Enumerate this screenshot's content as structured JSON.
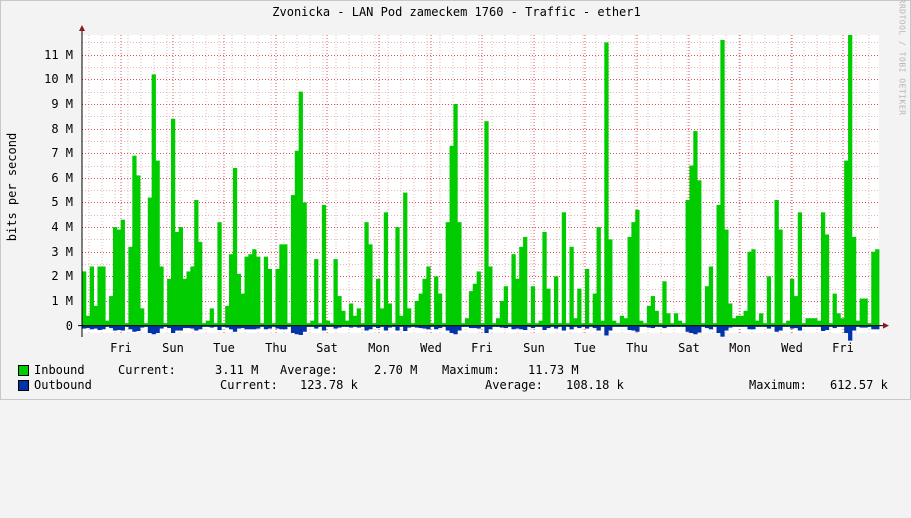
{
  "chart_data": {
    "type": "area",
    "title": "Zvonicka - LAN Pod zameckem 1760 - Traffic - ether1",
    "ylabel": "bits per second",
    "watermark": "RRDTOOL / TOBI OETIKER",
    "ylim": [
      -0.3,
      11.8
    ],
    "y_unit": "M",
    "y_ticks": [
      0,
      1,
      2,
      3,
      4,
      5,
      6,
      7,
      8,
      9,
      10,
      11
    ],
    "y_tick_labels": [
      "0",
      "1 M",
      "2 M",
      "3 M",
      "4 M",
      "5 M",
      "6 M",
      "7 M",
      "8 M",
      "9 M",
      "10 M",
      "11 M"
    ],
    "x_tick_labels": [
      "Fri",
      "Sun",
      "Tue",
      "Thu",
      "Sat",
      "Mon",
      "Wed",
      "Fri",
      "Sun",
      "Tue",
      "Thu",
      "Sat",
      "Mon",
      "Wed",
      "Fri"
    ],
    "grid": true,
    "colors": {
      "inbound": "#00cc00",
      "outbound": "#0033aa",
      "grid_minor": "#e8b8b8",
      "grid_major": "#e05050",
      "plot_bg": "#ffffff",
      "axis": "#000000",
      "arrow": "#8b1a1a"
    },
    "series": [
      {
        "name": "Inbound",
        "values": [
          2.2,
          0.4,
          2.4,
          0.8,
          2.4,
          2.4,
          0.2,
          1.2,
          4.0,
          3.9,
          4.3,
          0.1,
          3.2,
          6.9,
          6.1,
          0.7,
          0.1,
          5.2,
          10.2,
          6.7,
          2.4,
          0.1,
          1.9,
          8.4,
          3.8,
          4.0,
          1.9,
          2.2,
          2.4,
          5.1,
          3.4,
          0.1,
          0.2,
          0.7,
          0.1,
          4.2,
          0.1,
          0.8,
          2.9,
          6.4,
          2.1,
          1.3,
          2.8,
          2.9,
          3.1,
          2.8,
          0.1,
          2.8,
          2.3,
          0.1,
          2.3,
          3.3,
          3.3,
          0.1,
          5.3,
          7.1,
          9.5,
          5.0,
          0.1,
          0.2,
          2.7,
          0.1,
          4.9,
          0.2,
          0.1,
          2.7,
          1.2,
          0.6,
          0.2,
          0.9,
          0.4,
          0.7,
          0.1,
          4.2,
          3.3,
          0.1,
          1.9,
          0.7,
          4.6,
          0.9,
          0.1,
          4.0,
          0.4,
          5.4,
          0.7,
          0.1,
          1.0,
          1.3,
          1.9,
          2.4,
          0.1,
          2.0,
          1.3,
          0.1,
          4.2,
          7.3,
          9.0,
          4.2,
          0.1,
          0.3,
          1.4,
          1.7,
          2.2,
          0.1,
          8.3,
          2.4,
          0.1,
          0.3,
          1.0,
          1.6,
          0.1,
          2.9,
          1.9,
          3.2,
          3.6,
          0.1,
          1.6,
          0.1,
          0.2,
          3.8,
          1.5,
          0.1,
          2.0,
          0.1,
          4.6,
          0.1,
          3.2,
          0.3,
          1.5,
          0.1,
          2.3,
          0.1,
          1.3,
          4.0,
          0.2,
          11.5,
          3.5,
          0.2,
          0.1,
          0.4,
          0.3,
          3.6,
          4.2,
          4.7,
          0.2,
          0.1,
          0.8,
          1.2,
          0.6,
          0.1,
          1.8,
          0.5,
          0.1,
          0.5,
          0.2,
          0.1,
          5.1,
          6.5,
          7.9,
          5.9,
          0.1,
          1.6,
          2.4,
          0.1,
          4.9,
          11.6,
          3.9,
          0.9,
          0.3,
          0.4,
          0.4,
          0.6,
          3.0,
          3.1,
          0.2,
          0.5,
          0.1,
          2.0,
          0.1,
          5.1,
          3.9,
          0.1,
          0.2,
          1.9,
          1.2,
          4.6,
          0.1,
          0.3,
          0.3,
          0.3,
          0.2,
          4.6,
          3.7,
          0.1,
          1.3,
          0.5,
          0.3,
          6.7,
          11.8,
          3.6,
          0.2,
          1.1,
          1.1,
          0.1,
          3.0,
          3.1
        ]
      },
      {
        "name": "Outbound",
        "values": [
          0.12,
          0.1,
          0.15,
          0.12,
          0.18,
          0.15,
          0.05,
          0.1,
          0.2,
          0.18,
          0.2,
          0.05,
          0.15,
          0.25,
          0.22,
          0.08,
          0.05,
          0.3,
          0.35,
          0.3,
          0.12,
          0.05,
          0.1,
          0.3,
          0.2,
          0.2,
          0.1,
          0.1,
          0.12,
          0.2,
          0.15,
          0.05,
          0.05,
          0.08,
          0.05,
          0.18,
          0.05,
          0.08,
          0.15,
          0.25,
          0.12,
          0.1,
          0.15,
          0.15,
          0.15,
          0.12,
          0.05,
          0.15,
          0.12,
          0.05,
          0.12,
          0.15,
          0.15,
          0.05,
          0.3,
          0.35,
          0.38,
          0.25,
          0.05,
          0.05,
          0.12,
          0.05,
          0.2,
          0.05,
          0.05,
          0.12,
          0.08,
          0.05,
          0.05,
          0.08,
          0.05,
          0.08,
          0.05,
          0.2,
          0.15,
          0.05,
          0.1,
          0.05,
          0.2,
          0.08,
          0.05,
          0.2,
          0.05,
          0.22,
          0.08,
          0.05,
          0.08,
          0.1,
          0.12,
          0.15,
          0.05,
          0.15,
          0.1,
          0.05,
          0.2,
          0.3,
          0.35,
          0.2,
          0.05,
          0.05,
          0.1,
          0.1,
          0.12,
          0.05,
          0.3,
          0.15,
          0.05,
          0.05,
          0.08,
          0.1,
          0.05,
          0.15,
          0.12,
          0.15,
          0.18,
          0.05,
          0.1,
          0.05,
          0.05,
          0.18,
          0.1,
          0.05,
          0.12,
          0.05,
          0.2,
          0.05,
          0.15,
          0.05,
          0.1,
          0.05,
          0.12,
          0.05,
          0.1,
          0.2,
          0.05,
          0.4,
          0.2,
          0.05,
          0.05,
          0.05,
          0.05,
          0.18,
          0.2,
          0.25,
          0.05,
          0.05,
          0.08,
          0.1,
          0.05,
          0.05,
          0.1,
          0.05,
          0.05,
          0.05,
          0.05,
          0.05,
          0.25,
          0.3,
          0.35,
          0.28,
          0.05,
          0.1,
          0.15,
          0.05,
          0.3,
          0.45,
          0.2,
          0.08,
          0.05,
          0.05,
          0.05,
          0.05,
          0.15,
          0.15,
          0.05,
          0.05,
          0.05,
          0.12,
          0.05,
          0.25,
          0.2,
          0.05,
          0.05,
          0.12,
          0.1,
          0.2,
          0.05,
          0.05,
          0.05,
          0.05,
          0.05,
          0.22,
          0.18,
          0.05,
          0.1,
          0.05,
          0.05,
          0.3,
          0.61,
          0.2,
          0.05,
          0.08,
          0.08,
          0.05,
          0.15,
          0.15
        ]
      }
    ]
  },
  "legend": {
    "inbound": {
      "label": "Inbound",
      "current_label": "Current:",
      "current": "3.11 M",
      "average_label": "Average:",
      "average": "2.70 M",
      "maximum_label": "Maximum:",
      "maximum": "11.73 M"
    },
    "outbound": {
      "label": "Outbound",
      "current_label": "Current:",
      "current": "123.78 k",
      "average_label": "Average:",
      "average": "108.18 k",
      "maximum_label": "Maximum:",
      "maximum": "612.57 k"
    }
  }
}
